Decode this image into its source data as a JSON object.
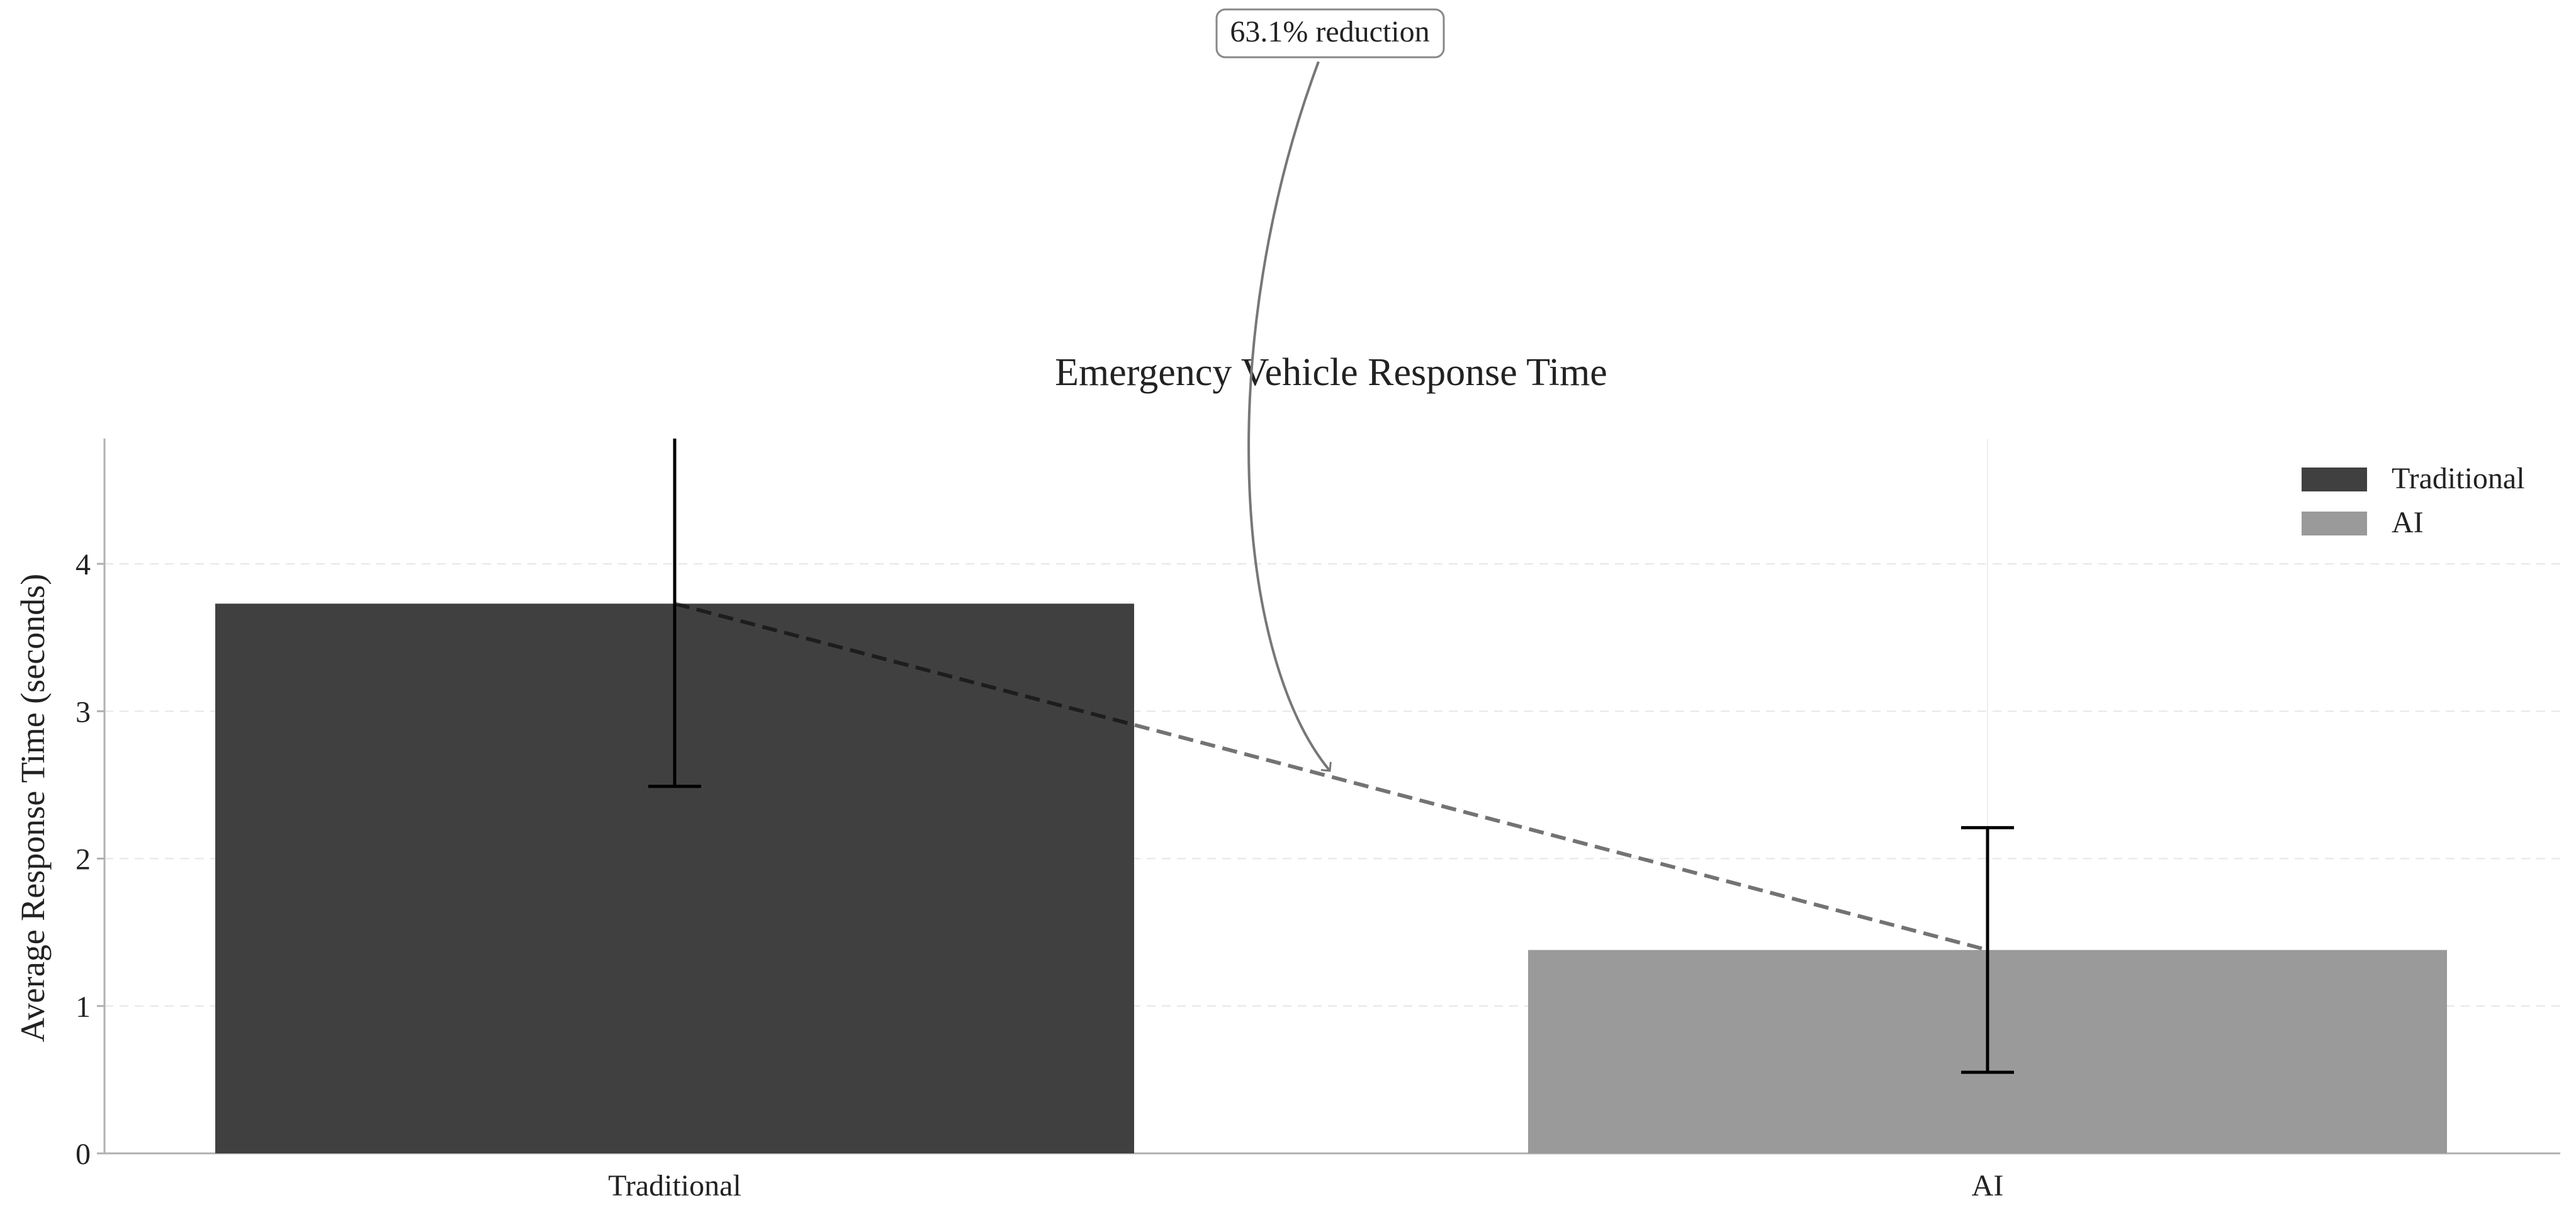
{
  "chart_data": {
    "type": "bar",
    "title": "Emergency Vehicle Response Time",
    "xlabel": "",
    "ylabel": "Average Response Time (seconds)",
    "categories": [
      "Traditional",
      "AI"
    ],
    "values": [
      3.73,
      1.38
    ],
    "error_bars": [
      {
        "lower": 2.49,
        "upper": 4.85
      },
      {
        "lower": 0.55,
        "upper": 2.21
      }
    ],
    "ylim": [
      0,
      4.85
    ],
    "yticks": [
      "0",
      "1",
      "2",
      "3",
      "4"
    ],
    "grid": true,
    "legend": {
      "placement": "top-right",
      "entries": [
        "Traditional",
        "AI"
      ]
    },
    "annotation": {
      "text": "63.1% reduction"
    },
    "colors": {
      "traditional": "#404040",
      "ai": "#9a9a9a",
      "axis": "#b0b0b0",
      "grid": "#e6e6e6",
      "text": "#222222",
      "annotation": "#777777"
    }
  }
}
